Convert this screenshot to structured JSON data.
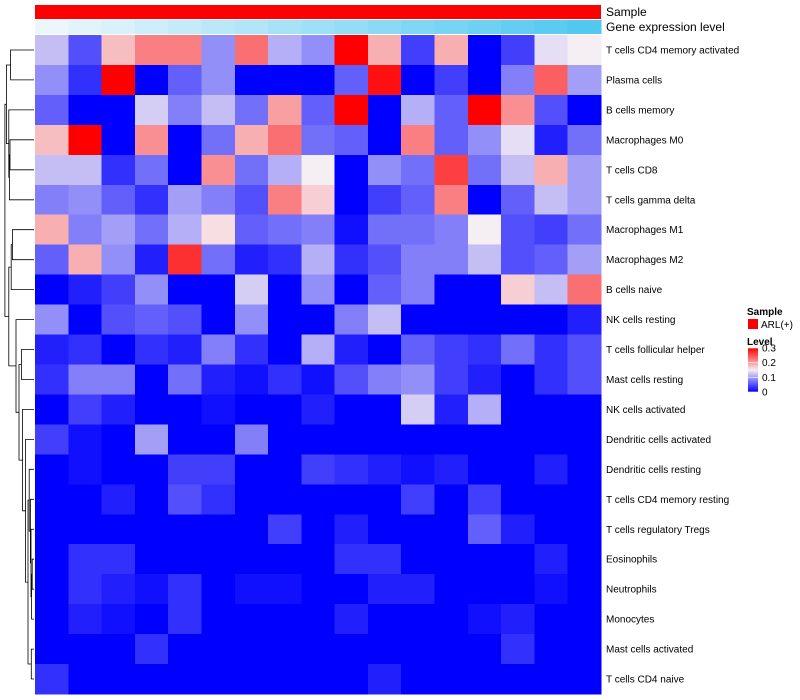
{
  "chart_data": {
    "type": "heatmap",
    "title": "",
    "annotations": [
      {
        "name": "Sample",
        "label": "Sample",
        "color": "#ff0000"
      },
      {
        "name": "Gene expression level",
        "label": "Gene expression level",
        "gradient": [
          "#ebf7fd",
          "#50c8f0"
        ]
      }
    ],
    "rows": [
      "T cells CD4 memory activated",
      "Plasma cells",
      "B cells memory",
      "Macrophages M0",
      "T cells CD8",
      "T cells gamma delta",
      "Macrophages M1",
      "Macrophages M2",
      "B cells naive",
      "NK cells resting",
      "T cells follicular helper",
      "Mast cells resting",
      "NK cells activated",
      "Dendritic cells activated",
      "Dendritic cells resting",
      "T cells CD4 memory resting",
      "T cells regulatory  Tregs",
      "Eosinophils",
      "Neutrophils",
      "Monocytes",
      "Mast cells activated",
      "T cells CD4 naive"
    ],
    "n_columns": 17,
    "values": [
      [
        0.12,
        0.05,
        0.18,
        0.22,
        0.22,
        0.09,
        0.23,
        0.11,
        0.09,
        0.3,
        0.19,
        0.04,
        0.19,
        0.0,
        0.04,
        0.14,
        0.15
      ],
      [
        0.09,
        0.03,
        0.3,
        0.0,
        0.06,
        0.09,
        0.0,
        0.0,
        0.0,
        0.06,
        0.29,
        0.0,
        0.04,
        0.0,
        0.08,
        0.24,
        0.1
      ],
      [
        0.06,
        0.0,
        0.0,
        0.13,
        0.08,
        0.12,
        0.07,
        0.2,
        0.06,
        0.3,
        0.0,
        0.11,
        0.06,
        0.3,
        0.21,
        0.05,
        0.0
      ],
      [
        0.18,
        0.3,
        0.0,
        0.21,
        0.0,
        0.07,
        0.19,
        0.23,
        0.07,
        0.06,
        0.0,
        0.22,
        0.06,
        0.09,
        0.14,
        0.02,
        0.07
      ],
      [
        0.12,
        0.12,
        0.03,
        0.07,
        0.0,
        0.21,
        0.07,
        0.11,
        0.15,
        0.0,
        0.09,
        0.07,
        0.26,
        0.07,
        0.12,
        0.19,
        0.1
      ],
      [
        0.08,
        0.09,
        0.06,
        0.03,
        0.1,
        0.08,
        0.05,
        0.22,
        0.17,
        0.0,
        0.04,
        0.06,
        0.22,
        0.0,
        0.06,
        0.12,
        0.1
      ],
      [
        0.19,
        0.08,
        0.1,
        0.07,
        0.11,
        0.16,
        0.06,
        0.07,
        0.08,
        0.01,
        0.07,
        0.07,
        0.08,
        0.15,
        0.05,
        0.04,
        0.07
      ],
      [
        0.06,
        0.19,
        0.09,
        0.02,
        0.27,
        0.07,
        0.02,
        0.03,
        0.11,
        0.03,
        0.05,
        0.08,
        0.08,
        0.12,
        0.05,
        0.06,
        0.1
      ],
      [
        0.0,
        0.02,
        0.04,
        0.09,
        0.0,
        0.0,
        0.13,
        0.0,
        0.09,
        0.0,
        0.06,
        0.08,
        0.0,
        0.0,
        0.17,
        0.12,
        0.23
      ],
      [
        0.09,
        0.0,
        0.05,
        0.06,
        0.05,
        0.0,
        0.09,
        0.0,
        0.0,
        0.08,
        0.12,
        0.0,
        0.0,
        0.0,
        0.0,
        0.0,
        0.02
      ],
      [
        0.02,
        0.03,
        0.0,
        0.03,
        0.02,
        0.08,
        0.03,
        0.0,
        0.11,
        0.02,
        0.0,
        0.06,
        0.04,
        0.03,
        0.07,
        0.03,
        0.05
      ],
      [
        0.03,
        0.08,
        0.08,
        0.0,
        0.07,
        0.02,
        0.01,
        0.03,
        0.01,
        0.05,
        0.08,
        0.09,
        0.04,
        0.02,
        0.0,
        0.03,
        0.05
      ],
      [
        0.0,
        0.04,
        0.02,
        0.0,
        0.0,
        0.01,
        0.0,
        0.0,
        0.02,
        0.0,
        0.0,
        0.13,
        0.02,
        0.11,
        0.0,
        0.0,
        0.0
      ],
      [
        0.04,
        0.01,
        0.0,
        0.1,
        0.0,
        0.0,
        0.08,
        0.0,
        0.0,
        0.0,
        0.0,
        0.0,
        0.0,
        0.0,
        0.0,
        0.0,
        0.0
      ],
      [
        0.0,
        0.01,
        0.0,
        0.0,
        0.04,
        0.04,
        0.0,
        0.0,
        0.04,
        0.03,
        0.02,
        0.01,
        0.02,
        0.0,
        0.0,
        0.02,
        0.0
      ],
      [
        0.0,
        0.0,
        0.02,
        0.0,
        0.05,
        0.03,
        0.0,
        0.0,
        0.0,
        0.0,
        0.0,
        0.04,
        0.0,
        0.04,
        0.0,
        0.0,
        0.0
      ],
      [
        0.0,
        0.0,
        0.0,
        0.0,
        0.0,
        0.0,
        0.0,
        0.04,
        0.0,
        0.02,
        0.0,
        0.0,
        0.0,
        0.06,
        0.02,
        0.0,
        0.0
      ],
      [
        0.0,
        0.03,
        0.03,
        0.0,
        0.0,
        0.0,
        0.0,
        0.0,
        0.0,
        0.03,
        0.03,
        0.0,
        0.0,
        0.0,
        0.0,
        0.02,
        0.0
      ],
      [
        0.0,
        0.03,
        0.02,
        0.01,
        0.03,
        0.0,
        0.01,
        0.01,
        0.0,
        0.0,
        0.02,
        0.02,
        0.0,
        0.0,
        0.0,
        0.01,
        0.0
      ],
      [
        0.0,
        0.02,
        0.01,
        0.0,
        0.03,
        0.0,
        0.0,
        0.0,
        0.0,
        0.02,
        0.0,
        0.0,
        0.0,
        0.01,
        0.02,
        0.0,
        0.0
      ],
      [
        0.0,
        0.0,
        0.0,
        0.03,
        0.0,
        0.0,
        0.0,
        0.0,
        0.0,
        0.0,
        0.0,
        0.0,
        0.0,
        0.0,
        0.03,
        0.0,
        0.0
      ],
      [
        0.03,
        0.0,
        0.0,
        0.0,
        0.0,
        0.0,
        0.0,
        0.0,
        0.0,
        0.0,
        0.02,
        0.0,
        0.0,
        0.0,
        0.0,
        0.0,
        0.0
      ]
    ],
    "color_scale": {
      "min": 0,
      "max": 0.3,
      "colors": [
        "#0000ff",
        "#f5eef3",
        "#ff0000"
      ]
    },
    "legend": {
      "position": "right",
      "sample_title": "Sample",
      "sample_entry": "ARL(+)",
      "sample_color": "#ff0000",
      "level_title": "Level",
      "level_ticks": [
        "0.3",
        "0.2",
        "0.1",
        "0"
      ],
      "level_tick_values": [
        0.3,
        0.2,
        0.1,
        0
      ]
    },
    "row_dendrogram": true
  }
}
